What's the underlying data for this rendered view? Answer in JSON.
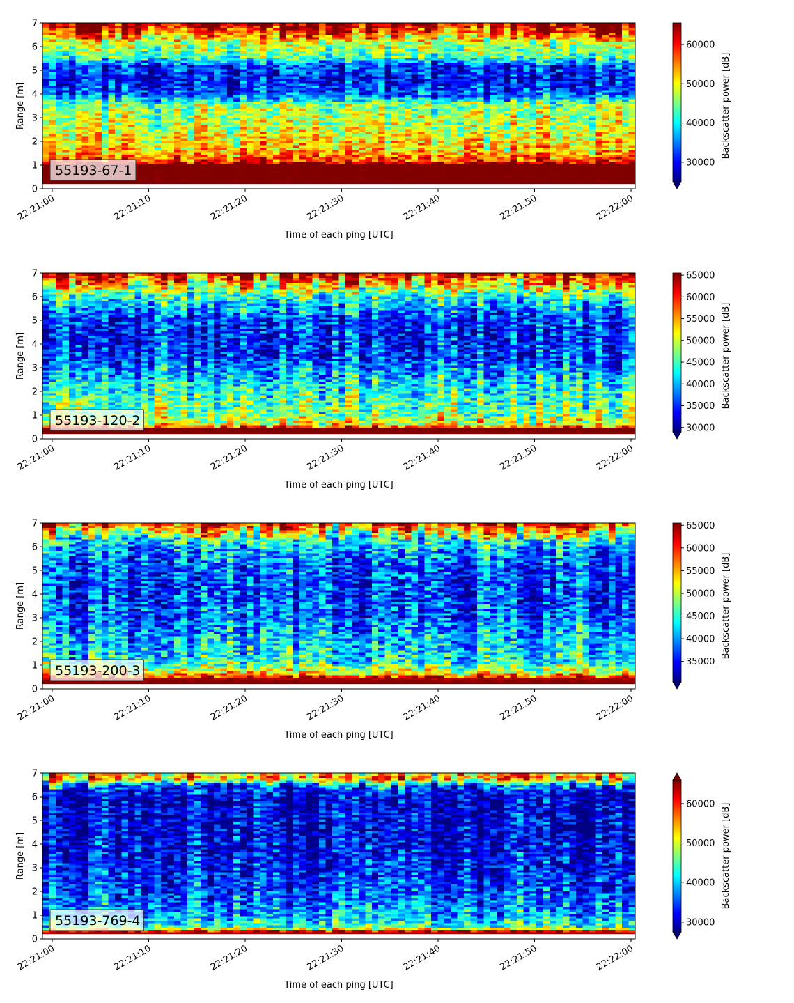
{
  "chart_data": [
    {
      "type": "heatmap",
      "label": "55193-67-1",
      "xlabel": "Time of each ping [UTC]",
      "ylabel": "Range [m]",
      "colorbar_label": "Backscatter power [dB]",
      "colormap": "jet",
      "x_ticks": [
        "22:21:00",
        "22:21:10",
        "22:21:20",
        "22:21:30",
        "22:21:40",
        "22:21:50",
        "22:22:00"
      ],
      "y_ticks": [
        0,
        1,
        2,
        3,
        4,
        5,
        6,
        7
      ],
      "ylim": [
        0,
        7
      ],
      "xlim_seconds": [
        0,
        60
      ],
      "clim": [
        25000,
        65500
      ],
      "colorbar_ticks": [
        30000,
        40000,
        50000,
        60000
      ],
      "colorbar_extend": "min",
      "value_profile": [
        {
          "range": 0.25,
          "value": 66000
        },
        {
          "range": 0.6,
          "value": 66000
        },
        {
          "range": 1.05,
          "value": 66000
        },
        {
          "range": 1.2,
          "value": 58000
        },
        {
          "range": 1.6,
          "value": 52000
        },
        {
          "range": 2.0,
          "value": 51000
        },
        {
          "range": 2.6,
          "value": 48000
        },
        {
          "range": 3.2,
          "value": 47000
        },
        {
          "range": 3.6,
          "value": 45000
        },
        {
          "range": 4.0,
          "value": 33000
        },
        {
          "range": 4.6,
          "value": 30000
        },
        {
          "range": 5.2,
          "value": 32000
        },
        {
          "range": 5.6,
          "value": 43000
        },
        {
          "range": 6.2,
          "value": 48000
        },
        {
          "range": 6.7,
          "value": 58000
        },
        {
          "range": 7.0,
          "value": 63000
        }
      ]
    },
    {
      "type": "heatmap",
      "label": "55193-120-2",
      "xlabel": "Time of each ping [UTC]",
      "ylabel": "Range [m]",
      "colorbar_label": "Backscatter power [dB]",
      "colormap": "jet",
      "x_ticks": [
        "22:21:00",
        "22:21:10",
        "22:21:20",
        "22:21:30",
        "22:21:40",
        "22:21:50",
        "22:22:00"
      ],
      "y_ticks": [
        0,
        1,
        2,
        3,
        4,
        5,
        6,
        7
      ],
      "ylim": [
        0,
        7
      ],
      "xlim_seconds": [
        0,
        60
      ],
      "clim": [
        29000,
        65500
      ],
      "colorbar_ticks": [
        30000,
        35000,
        40000,
        45000,
        50000,
        55000,
        60000,
        65000
      ],
      "colorbar_extend": "min",
      "value_profile": [
        {
          "range": 0.25,
          "value": 66000
        },
        {
          "range": 0.45,
          "value": 66000
        },
        {
          "range": 0.6,
          "value": 52000
        },
        {
          "range": 1.0,
          "value": 48000
        },
        {
          "range": 1.6,
          "value": 46000
        },
        {
          "range": 2.2,
          "value": 44000
        },
        {
          "range": 2.8,
          "value": 40000
        },
        {
          "range": 3.5,
          "value": 36000
        },
        {
          "range": 4.3,
          "value": 35000
        },
        {
          "range": 5.0,
          "value": 36000
        },
        {
          "range": 5.8,
          "value": 42000
        },
        {
          "range": 6.4,
          "value": 50000
        },
        {
          "range": 7.0,
          "value": 62000
        }
      ]
    },
    {
      "type": "heatmap",
      "label": "55193-200-3",
      "xlabel": "Time of each ping [UTC]",
      "ylabel": "Range [m]",
      "colorbar_label": "Backscatter power [dB]",
      "colormap": "jet",
      "x_ticks": [
        "22:21:00",
        "22:21:10",
        "22:21:20",
        "22:21:30",
        "22:21:40",
        "22:21:50",
        "22:22:00"
      ],
      "y_ticks": [
        0,
        1,
        2,
        3,
        4,
        5,
        6,
        7
      ],
      "ylim": [
        0,
        7
      ],
      "xlim_seconds": [
        0,
        60
      ],
      "clim": [
        30500,
        65500
      ],
      "colorbar_ticks": [
        35000,
        40000,
        45000,
        50000,
        55000,
        60000,
        65000
      ],
      "colorbar_extend": "min",
      "value_profile": [
        {
          "range": 0.25,
          "value": 66000
        },
        {
          "range": 0.45,
          "value": 64000
        },
        {
          "range": 0.7,
          "value": 52000
        },
        {
          "range": 1.2,
          "value": 44000
        },
        {
          "range": 2.0,
          "value": 42000
        },
        {
          "range": 3.0,
          "value": 38500
        },
        {
          "range": 4.0,
          "value": 37000
        },
        {
          "range": 5.0,
          "value": 37500
        },
        {
          "range": 5.8,
          "value": 40000
        },
        {
          "range": 6.4,
          "value": 46000
        },
        {
          "range": 7.0,
          "value": 60000
        }
      ]
    },
    {
      "type": "heatmap",
      "label": "55193-769-4",
      "xlabel": "Time of each ping [UTC]",
      "ylabel": "Range [m]",
      "colorbar_label": "Backscatter power [dB]",
      "colormap": "jet",
      "x_ticks": [
        "22:21:00",
        "22:21:10",
        "22:21:20",
        "22:21:30",
        "22:21:40",
        "22:21:50",
        "22:22:00"
      ],
      "y_ticks": [
        0,
        1,
        2,
        3,
        4,
        5,
        6,
        7
      ],
      "ylim": [
        0,
        7
      ],
      "xlim_seconds": [
        0,
        60
      ],
      "clim": [
        27500,
        66000
      ],
      "colorbar_ticks": [
        30000,
        40000,
        50000,
        60000
      ],
      "colorbar_extend": "both",
      "value_profile": [
        {
          "range": 0.2,
          "value": 66000
        },
        {
          "range": 0.35,
          "value": 62000
        },
        {
          "range": 0.5,
          "value": 44000
        },
        {
          "range": 1.0,
          "value": 39000
        },
        {
          "range": 2.0,
          "value": 35000
        },
        {
          "range": 3.0,
          "value": 33000
        },
        {
          "range": 4.0,
          "value": 31500
        },
        {
          "range": 5.0,
          "value": 31000
        },
        {
          "range": 6.0,
          "value": 30500
        },
        {
          "range": 6.5,
          "value": 35000
        },
        {
          "range": 6.8,
          "value": 56000
        },
        {
          "range": 7.0,
          "value": 50000
        }
      ]
    }
  ]
}
